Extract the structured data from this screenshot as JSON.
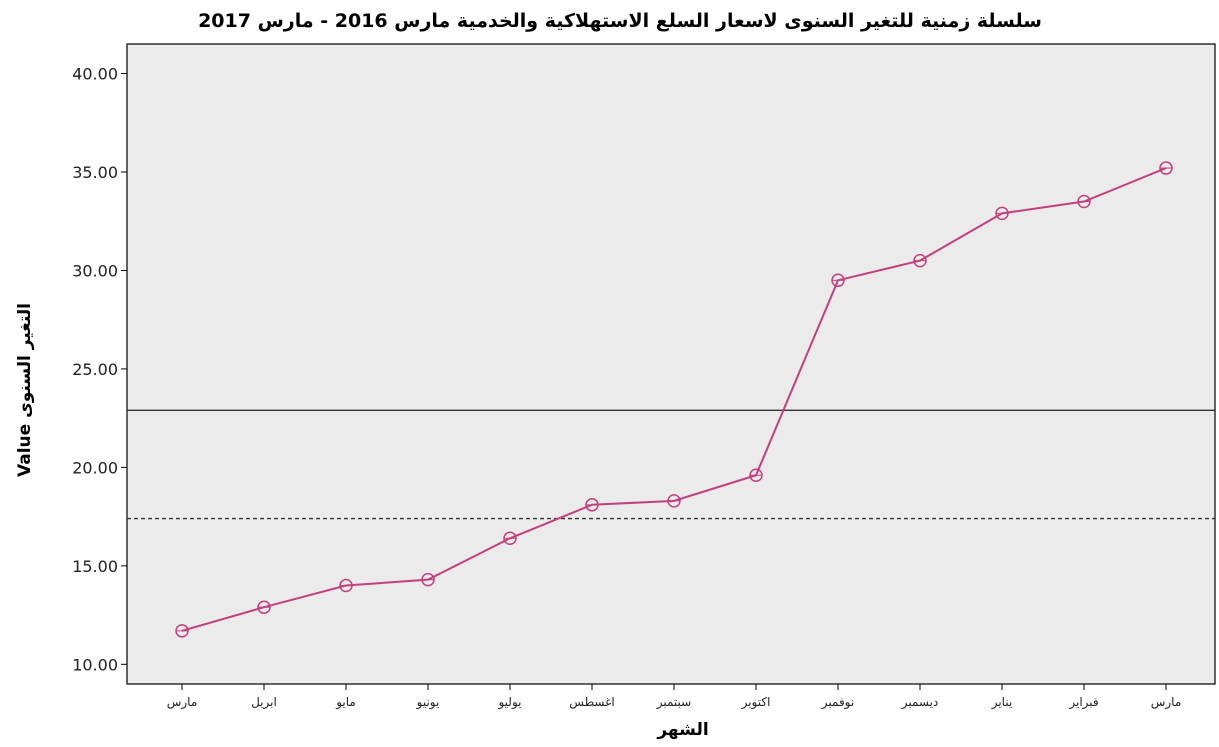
{
  "chart_data": {
    "type": "line",
    "title": "سلسلة زمنية للتغير السنوى لاسعار السلع الاستهلاكية والخدمية مارس 2016 - مارس 2017",
    "xlabel": "الشهر",
    "ylabel": "Value التغير السنوى",
    "categories": [
      "مارس",
      "ابريل",
      "مايو",
      "يونيو",
      "يوليو",
      "اغسطس",
      "سبتمبر",
      "اكتوبر",
      "نوفمبر",
      "ديسمبر",
      "يناير",
      "فبراير",
      "مارس"
    ],
    "series": [
      {
        "values": [
          11.7,
          12.9,
          14.0,
          14.3,
          16.4,
          18.1,
          18.3,
          19.6,
          29.5,
          30.5,
          32.9,
          33.5,
          35.2
        ]
      }
    ],
    "reference_lines": [
      {
        "value": 22.9,
        "style": "solid"
      },
      {
        "value": 17.4,
        "style": "dashed"
      }
    ],
    "ylim": [
      9.0,
      41.5
    ],
    "yticks": [
      "10.00",
      "15.00",
      "20.00",
      "25.00",
      "30.00",
      "35.00",
      "40.00"
    ],
    "colors": {
      "line": "#c2407e",
      "plot_background": "#ebebeb",
      "axis": "#000000"
    },
    "marker": "circle",
    "grid": false,
    "legend": "none"
  }
}
